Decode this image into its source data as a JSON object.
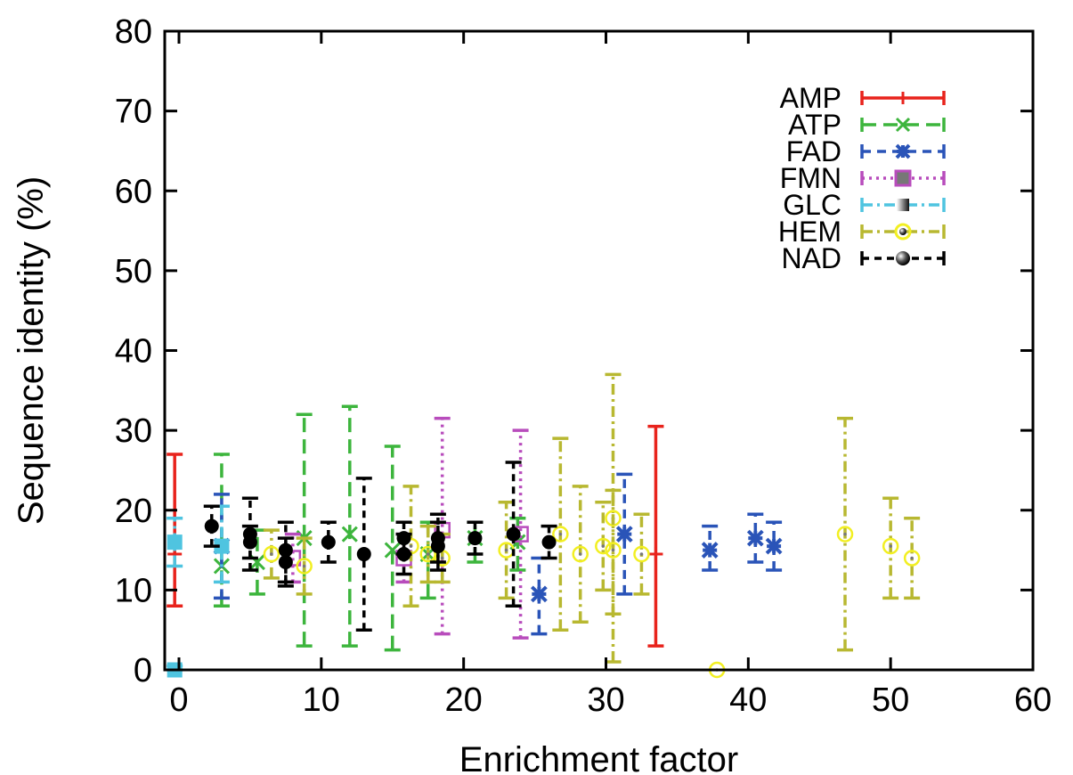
{
  "chart_data": {
    "type": "scatter",
    "title": "",
    "xlabel": "Enrichment factor",
    "ylabel": "Sequence identity (%)",
    "xlim": [
      -1,
      60
    ],
    "ylim": [
      0,
      80
    ],
    "x_ticks": [
      0,
      10,
      20,
      30,
      40,
      50,
      60
    ],
    "y_ticks": [
      0,
      10,
      20,
      30,
      40,
      50,
      60,
      70,
      80
    ],
    "grid": false,
    "legend_position": "top-right",
    "series": [
      {
        "name": "AMP",
        "color": "#e8231c",
        "marker": "plus",
        "dash": "solid",
        "points": [
          {
            "x": -0.3,
            "y": 14.5,
            "lo": 8.0,
            "hi": 27.0
          },
          {
            "x": 33.5,
            "y": 14.5,
            "lo": 3.0,
            "hi": 30.5
          }
        ]
      },
      {
        "name": "ATP",
        "color": "#3db53d",
        "marker": "x",
        "dash": "long-dash",
        "points": [
          {
            "x": 3.0,
            "y": 13.0,
            "lo": 8.0,
            "hi": 27.0
          },
          {
            "x": 5.5,
            "y": 13.5,
            "lo": 9.5,
            "hi": 17.5
          },
          {
            "x": 8.8,
            "y": 16.5,
            "lo": 3.0,
            "hi": 32.0
          },
          {
            "x": 12.0,
            "y": 17.0,
            "lo": 3.0,
            "hi": 33.0
          },
          {
            "x": 15.0,
            "y": 15.0,
            "lo": 2.5,
            "hi": 28.0
          },
          {
            "x": 17.5,
            "y": 14.5,
            "lo": 9.0,
            "hi": 18.5
          },
          {
            "x": 20.8,
            "y": 16.5,
            "lo": 13.5,
            "hi": 18.5
          },
          {
            "x": 23.8,
            "y": 16.0,
            "lo": 12.5,
            "hi": 19.0
          }
        ]
      },
      {
        "name": "FAD",
        "color": "#2a54b8",
        "marker": "star",
        "dash": "dash",
        "points": [
          {
            "x": 3.0,
            "y": 15.5,
            "lo": 9.0,
            "hi": 22.0
          },
          {
            "x": 25.3,
            "y": 9.5,
            "lo": 4.5,
            "hi": 14.0
          },
          {
            "x": 31.3,
            "y": 17.0,
            "lo": 9.5,
            "hi": 24.5
          },
          {
            "x": 37.3,
            "y": 15.0,
            "lo": 12.5,
            "hi": 18.0
          },
          {
            "x": 40.5,
            "y": 16.5,
            "lo": 13.5,
            "hi": 19.5
          },
          {
            "x": 41.8,
            "y": 15.5,
            "lo": 12.5,
            "hi": 18.5
          }
        ]
      },
      {
        "name": "FMN",
        "color": "#b84cbc",
        "marker": "square",
        "dash": "dot",
        "points": [
          {
            "x": 8.0,
            "y": 14.0,
            "lo": 11.0,
            "hi": 17.0
          },
          {
            "x": 15.8,
            "y": 14.0,
            "lo": 11.0,
            "hi": 17.0
          },
          {
            "x": 18.5,
            "y": 17.5,
            "lo": 4.5,
            "hi": 31.5
          },
          {
            "x": 24.0,
            "y": 17.0,
            "lo": 4.0,
            "hi": 30.0
          }
        ]
      },
      {
        "name": "GLC",
        "color": "#4fc4e0",
        "marker": "filled-square",
        "dash": "dash-dot",
        "points": [
          {
            "x": -0.3,
            "y": 16.0,
            "lo": 13.0,
            "hi": 19.0
          },
          {
            "x": -0.3,
            "y": 0.0,
            "lo": 0.0,
            "hi": 0.5
          },
          {
            "x": 3.0,
            "y": 15.5,
            "lo": 11.0,
            "hi": 20.5
          }
        ]
      },
      {
        "name": "HEM",
        "color": "#b8b831",
        "marker": "circle",
        "dash": "dash-dot",
        "points": [
          {
            "x": 6.5,
            "y": 14.5,
            "lo": 11.5,
            "hi": 17.5
          },
          {
            "x": 8.8,
            "y": 13.0,
            "lo": 9.5,
            "hi": 16.5
          },
          {
            "x": 16.3,
            "y": 15.5,
            "lo": 8.0,
            "hi": 23.0
          },
          {
            "x": 17.5,
            "y": 14.5,
            "lo": 11.0,
            "hi": 18.0
          },
          {
            "x": 18.5,
            "y": 14.0,
            "lo": 11.0,
            "hi": 17.0
          },
          {
            "x": 23.0,
            "y": 15.0,
            "lo": 9.0,
            "hi": 21.0
          },
          {
            "x": 26.8,
            "y": 17.0,
            "lo": 5.0,
            "hi": 29.0
          },
          {
            "x": 28.2,
            "y": 14.5,
            "lo": 6.0,
            "hi": 23.0
          },
          {
            "x": 29.8,
            "y": 15.5,
            "lo": 10.0,
            "hi": 21.0
          },
          {
            "x": 30.5,
            "y": 19.0,
            "lo": 1.0,
            "hi": 37.0
          },
          {
            "x": 30.5,
            "y": 15.0,
            "lo": 7.0,
            "hi": 22.5
          },
          {
            "x": 32.5,
            "y": 14.5,
            "lo": 9.5,
            "hi": 19.5
          },
          {
            "x": 37.8,
            "y": 0.0,
            "lo": 0.0,
            "hi": 0.0
          },
          {
            "x": 46.8,
            "y": 17.0,
            "lo": 2.5,
            "hi": 31.5
          },
          {
            "x": 50.0,
            "y": 15.5,
            "lo": 9.0,
            "hi": 21.5
          },
          {
            "x": 51.5,
            "y": 14.0,
            "lo": 9.0,
            "hi": 19.0
          }
        ]
      },
      {
        "name": "NAD",
        "color": "#000000",
        "marker": "filled-circle",
        "dash": "short-dash",
        "points": [
          {
            "x": 2.3,
            "y": 18.0,
            "lo": 15.5,
            "hi": 20.5
          },
          {
            "x": 5.0,
            "y": 17.0,
            "lo": 12.5,
            "hi": 21.5
          },
          {
            "x": 5.0,
            "y": 16.0,
            "lo": 14.0,
            "hi": 18.0
          },
          {
            "x": 7.5,
            "y": 15.0,
            "lo": 11.0,
            "hi": 18.5
          },
          {
            "x": 7.5,
            "y": 13.5,
            "lo": 10.5,
            "hi": 16.5
          },
          {
            "x": 10.5,
            "y": 16.0,
            "lo": 13.5,
            "hi": 18.5
          },
          {
            "x": 13.0,
            "y": 14.5,
            "lo": 5.0,
            "hi": 24.0
          },
          {
            "x": 15.8,
            "y": 16.5,
            "lo": 14.5,
            "hi": 18.5
          },
          {
            "x": 15.8,
            "y": 14.5,
            "lo": 12.0,
            "hi": 17.0
          },
          {
            "x": 18.2,
            "y": 16.5,
            "lo": 13.5,
            "hi": 19.5
          },
          {
            "x": 18.2,
            "y": 15.5,
            "lo": 12.5,
            "hi": 18.5
          },
          {
            "x": 20.8,
            "y": 16.5,
            "lo": 14.5,
            "hi": 18.5
          },
          {
            "x": 23.5,
            "y": 17.0,
            "lo": 8.0,
            "hi": 26.0
          },
          {
            "x": 26.0,
            "y": 16.0,
            "lo": 14.0,
            "hi": 18.0
          }
        ]
      }
    ]
  }
}
